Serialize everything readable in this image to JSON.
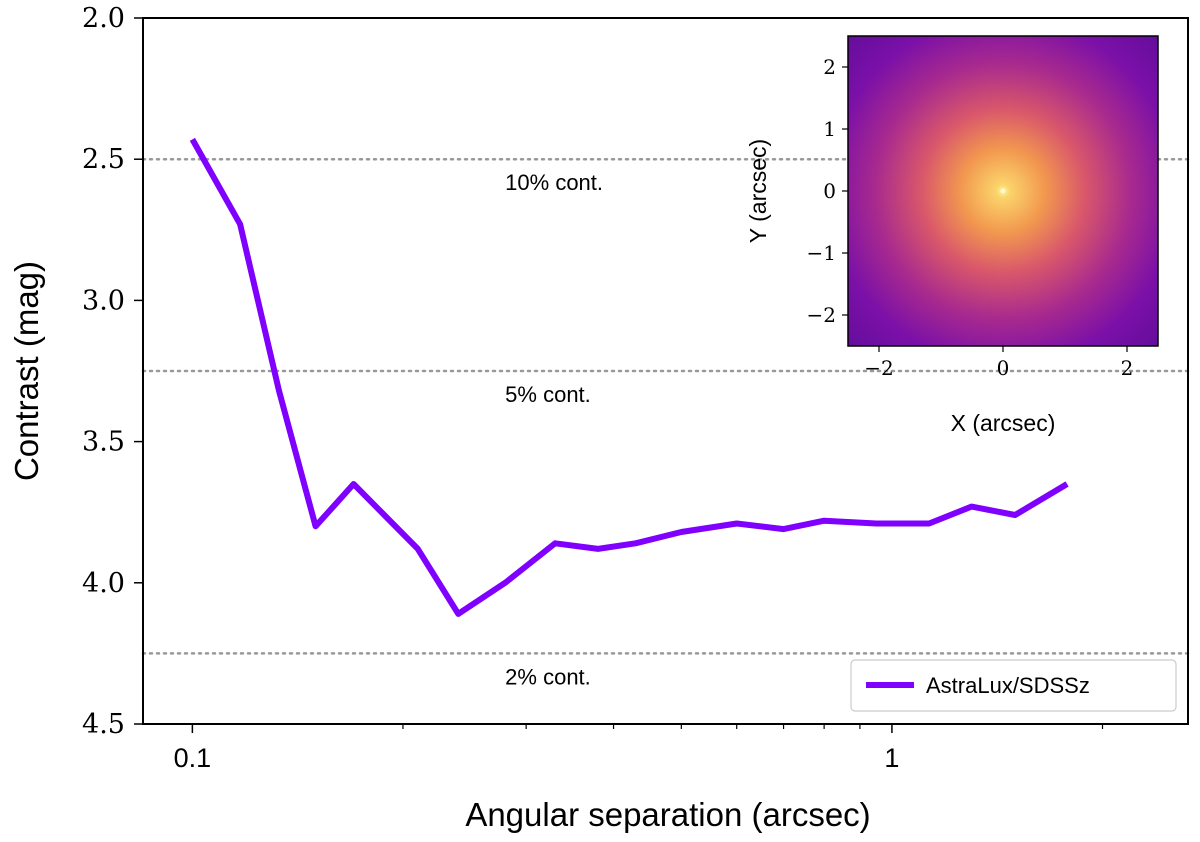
{
  "chart_data": {
    "type": "line",
    "xscale": "log",
    "xlim": [
      0.085,
      2.65
    ],
    "ylim": [
      2.0,
      4.5
    ],
    "y_inverted": true,
    "xlabel": "Angular separation (arcsec)",
    "ylabel": "Contrast (mag)",
    "x_tick_labels": [
      {
        "value": 0.1,
        "label": "0.1"
      },
      {
        "value": 1,
        "label": "1"
      }
    ],
    "x_minor_ticks": [
      0.2,
      0.3,
      0.4,
      0.5,
      0.6,
      0.7,
      0.8,
      0.9,
      2
    ],
    "y_ticks": [
      {
        "value": 2.0,
        "label": "2.0"
      },
      {
        "value": 2.5,
        "label": "2.5"
      },
      {
        "value": 3.0,
        "label": "3.0"
      },
      {
        "value": 3.5,
        "label": "3.5"
      },
      {
        "value": 4.0,
        "label": "4.0"
      },
      {
        "value": 4.5,
        "label": "4.5"
      }
    ],
    "series": [
      {
        "name": "AstraLux/SDSSz",
        "color": "#7f00ff",
        "x": [
          0.1,
          0.117,
          0.133,
          0.15,
          0.17,
          0.21,
          0.24,
          0.28,
          0.33,
          0.38,
          0.43,
          0.5,
          0.6,
          0.7,
          0.8,
          0.95,
          1.13,
          1.3,
          1.5,
          1.78
        ],
        "y": [
          2.43,
          2.73,
          3.32,
          3.8,
          3.65,
          3.88,
          4.11,
          4.0,
          3.86,
          3.88,
          3.86,
          3.82,
          3.79,
          3.81,
          3.78,
          3.79,
          3.79,
          3.73,
          3.76,
          3.65
        ]
      }
    ],
    "reference_lines": [
      {
        "y": 2.5,
        "label": "10% cont.",
        "label_x": 0.28
      },
      {
        "y": 3.25,
        "label": "5% cont.",
        "label_x": 0.28
      },
      {
        "y": 4.25,
        "label": "2% cont.",
        "label_x": 0.28
      }
    ],
    "legend": {
      "position": "lower-right",
      "entries": [
        "AstraLux/SDSSz"
      ]
    },
    "inset": {
      "type": "heatmap",
      "xlabel": "X (arcsec)",
      "ylabel": "Y (arcsec)",
      "xlim": [
        -2.5,
        2.5
      ],
      "ylim": [
        -2.5,
        2.5
      ],
      "x_ticks": [
        {
          "value": -2,
          "label": "−2"
        },
        {
          "value": 0,
          "label": "0"
        },
        {
          "value": 2,
          "label": "2"
        }
      ],
      "y_ticks": [
        {
          "value": 2,
          "label": "2"
        },
        {
          "value": 1,
          "label": "1"
        },
        {
          "value": 0,
          "label": "0"
        },
        {
          "value": -1,
          "label": "−1"
        },
        {
          "value": -2,
          "label": "−2"
        }
      ],
      "colormap": [
        "#fff4a0",
        "#f7a44a",
        "#e86a5a",
        "#b0308e",
        "#7b10a8",
        "#5a0c96"
      ]
    }
  }
}
